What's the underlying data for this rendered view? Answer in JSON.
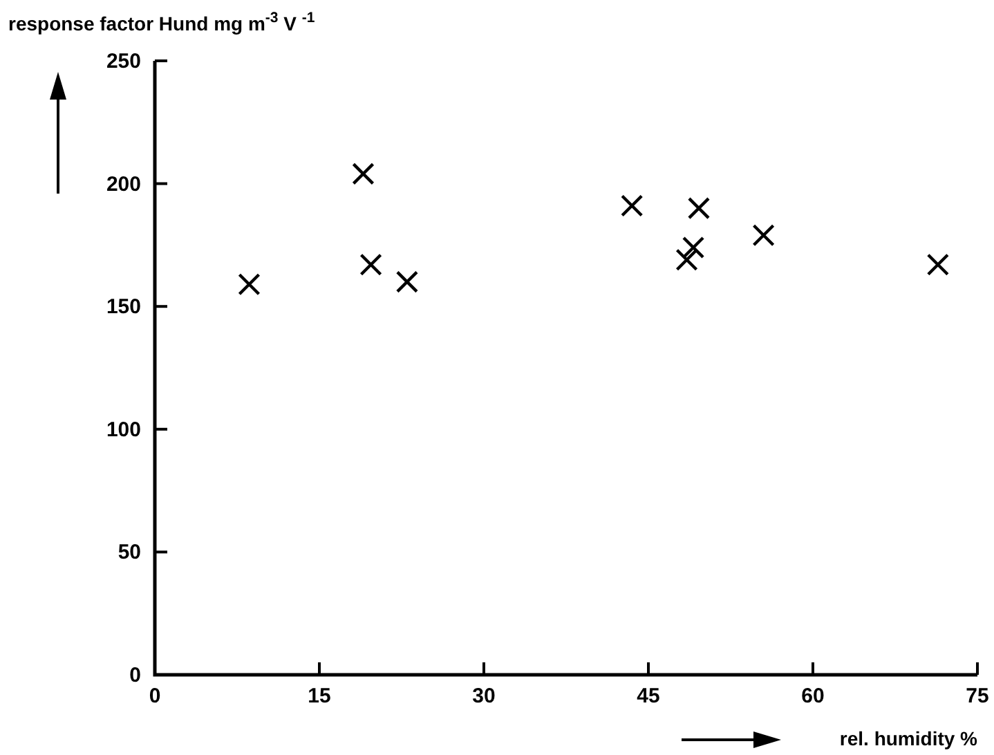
{
  "chart_data": {
    "type": "scatter",
    "xlabel": "rel. humidity %",
    "ylabel": "response factor Hund mg m$^{-3}$ V $^{-1}$",
    "marker": "cross",
    "grid": false,
    "xlim": [
      0,
      75
    ],
    "xticks": [
      0,
      15,
      30,
      45,
      60,
      75
    ],
    "ylim": [
      0,
      250
    ],
    "yticks": [
      0,
      50,
      100,
      150,
      200,
      250
    ],
    "series": [
      {
        "color": "#000000",
        "x": [
          8.6,
          19,
          19.7,
          23,
          43.5,
          49.6,
          49.1,
          48.5,
          55.5,
          71.4
        ],
        "values": [
          159,
          204,
          167,
          160,
          191,
          190,
          174,
          169,
          179,
          167
        ]
      }
    ]
  }
}
